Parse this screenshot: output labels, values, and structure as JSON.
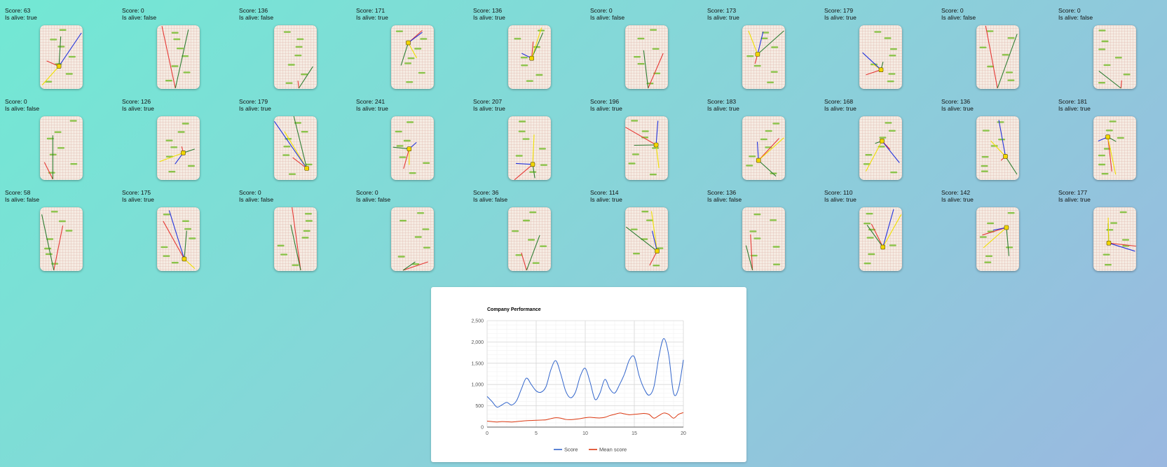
{
  "games": [
    {
      "score": "Score: 63",
      "alive": "Is alive: true"
    },
    {
      "score": "Score: 0",
      "alive": "Is alive: false"
    },
    {
      "score": "Score: 136",
      "alive": "Is alive: false"
    },
    {
      "score": "Score: 171",
      "alive": "Is alive: true"
    },
    {
      "score": "Score: 136",
      "alive": "Is alive: true"
    },
    {
      "score": "Score: 0",
      "alive": "Is alive: false"
    },
    {
      "score": "Score: 173",
      "alive": "Is alive: true"
    },
    {
      "score": "Score: 179",
      "alive": "Is alive: true"
    },
    {
      "score": "Score: 0",
      "alive": "Is alive: false"
    },
    {
      "score": "Score: 0",
      "alive": "Is alive: false"
    },
    {
      "score": "Score: 0",
      "alive": "Is alive: false"
    },
    {
      "score": "Score: 126",
      "alive": "Is alive: true"
    },
    {
      "score": "Score: 179",
      "alive": "Is alive: true"
    },
    {
      "score": "Score: 241",
      "alive": "Is alive: true"
    },
    {
      "score": "Score: 207",
      "alive": "Is alive: true"
    },
    {
      "score": "Score: 196",
      "alive": "Is alive: true"
    },
    {
      "score": "Score: 183",
      "alive": "Is alive: true"
    },
    {
      "score": "Score: 168",
      "alive": "Is alive: true"
    },
    {
      "score": "Score: 136",
      "alive": "Is alive: true"
    },
    {
      "score": "Score: 181",
      "alive": "Is alive: true"
    },
    {
      "score": "Score: 58",
      "alive": "Is alive: false"
    },
    {
      "score": "Score: 175",
      "alive": "Is alive: true"
    },
    {
      "score": "Score: 0",
      "alive": "Is alive: false"
    },
    {
      "score": "Score: 0",
      "alive": "Is alive: false"
    },
    {
      "score": "Score: 36",
      "alive": "Is alive: false"
    },
    {
      "score": "Score: 114",
      "alive": "Is alive: true"
    },
    {
      "score": "Score: 136",
      "alive": "Is alive: false"
    },
    {
      "score": "Score: 110",
      "alive": "Is alive: true"
    },
    {
      "score": "Score: 142",
      "alive": "Is alive: true"
    },
    {
      "score": "Score: 177",
      "alive": "Is alive: true"
    }
  ],
  "colors": {
    "platform": "#8bc34a",
    "boost": "#29b6f6",
    "player": "#f2d600",
    "rays": [
      "#e53935",
      "#2e7d32",
      "#f0e000",
      "#2233dd"
    ],
    "score_line": "#3366cc",
    "mean_line": "#dc3912"
  },
  "icons": {
    "player": "doodle-player-icon"
  },
  "chart_data": {
    "type": "line",
    "title": "Company Performance",
    "xlabel": "",
    "ylabel": "",
    "x_ticks": [
      0,
      5,
      10,
      15,
      20
    ],
    "y_ticks": [
      "0",
      "500",
      "1,000",
      "1,500",
      "2,000",
      "2,500"
    ],
    "xlim": [
      0,
      20
    ],
    "ylim": [
      0,
      2500
    ],
    "grid": true,
    "legend_position": "bottom",
    "x": [
      0,
      0.5,
      1,
      1.5,
      2,
      2.5,
      3,
      3.5,
      4,
      4.5,
      5,
      5.5,
      6,
      6.5,
      7,
      7.5,
      8,
      8.5,
      9,
      9.5,
      10,
      10.5,
      11,
      11.5,
      12,
      12.5,
      13,
      13.5,
      14,
      14.5,
      15,
      15.5,
      16,
      16.5,
      17,
      17.5,
      18,
      18.5,
      19,
      19.5,
      20
    ],
    "series": [
      {
        "name": "Score",
        "color": "#3366cc",
        "values": [
          720,
          600,
          470,
          520,
          580,
          520,
          620,
          900,
          1150,
          1000,
          850,
          820,
          950,
          1350,
          1560,
          1250,
          850,
          690,
          820,
          1200,
          1380,
          1050,
          650,
          800,
          1120,
          900,
          800,
          1000,
          1250,
          1580,
          1650,
          1200,
          900,
          750,
          950,
          1650,
          2080,
          1700,
          800,
          900,
          1580
        ]
      },
      {
        "name": "Mean score",
        "color": "#dc3912",
        "values": [
          140,
          130,
          120,
          130,
          125,
          120,
          130,
          140,
          150,
          155,
          160,
          165,
          170,
          200,
          220,
          210,
          180,
          175,
          185,
          200,
          220,
          230,
          220,
          215,
          230,
          270,
          300,
          330,
          310,
          290,
          300,
          310,
          320,
          300,
          210,
          270,
          330,
          300,
          210,
          300,
          340
        ]
      }
    ]
  }
}
